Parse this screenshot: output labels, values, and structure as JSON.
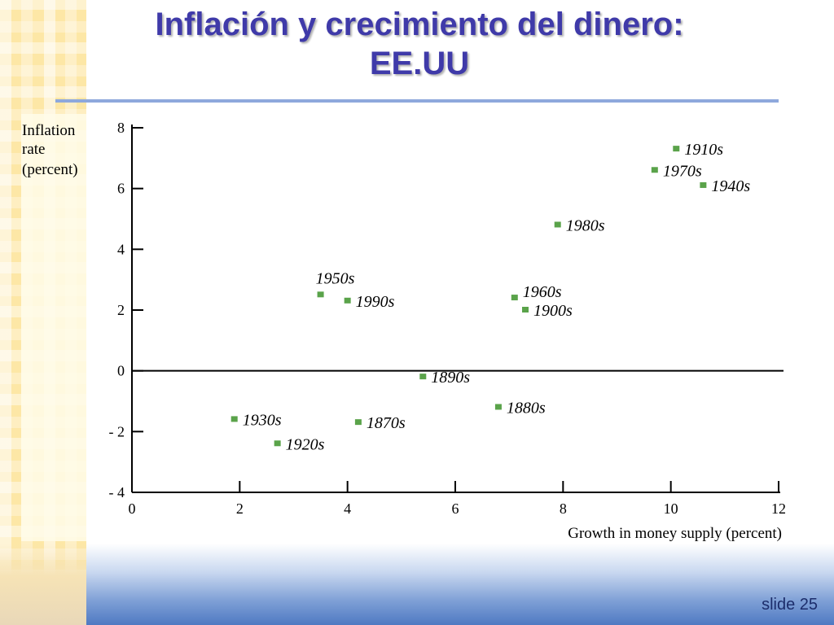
{
  "slide": {
    "title_line1": "Inflación y crecimiento del dinero:",
    "title_line2": "EE.UU",
    "number_label": "slide 25"
  },
  "colors": {
    "title": "#3f3aa9",
    "rule": "#8ea8dc",
    "marker": "#5aa34a",
    "axis": "#000000"
  },
  "chart_data": {
    "type": "scatter",
    "ylabel_lines": [
      "Inflation",
      "rate",
      "(percent)"
    ],
    "xlabel": "Growth in money supply (percent)",
    "xlim": [
      0,
      12
    ],
    "ylim": [
      -4,
      8
    ],
    "xticks": [
      {
        "value": 0,
        "label": "0"
      },
      {
        "value": 2,
        "label": "2"
      },
      {
        "value": 4,
        "label": "4"
      },
      {
        "value": 6,
        "label": "6"
      },
      {
        "value": 8,
        "label": "8"
      },
      {
        "value": 10,
        "label": "10"
      },
      {
        "value": 12,
        "label": "12"
      }
    ],
    "yticks": [
      {
        "value": 8,
        "label": "8"
      },
      {
        "value": 6,
        "label": "6"
      },
      {
        "value": 4,
        "label": "4"
      },
      {
        "value": 2,
        "label": "2"
      },
      {
        "value": 0,
        "label": "0"
      },
      {
        "value": -2,
        "label": "- 2"
      },
      {
        "value": -4,
        "label": "- 4"
      }
    ],
    "points": [
      {
        "label": "1870s",
        "x": 4.2,
        "y": -1.7
      },
      {
        "label": "1880s",
        "x": 6.8,
        "y": -1.2
      },
      {
        "label": "1890s",
        "x": 5.4,
        "y": -0.2
      },
      {
        "label": "1900s",
        "x": 7.3,
        "y": 2.0
      },
      {
        "label": "1910s",
        "x": 10.1,
        "y": 7.3
      },
      {
        "label": "1920s",
        "x": 2.7,
        "y": -2.4
      },
      {
        "label": "1930s",
        "x": 1.9,
        "y": -1.6
      },
      {
        "label": "1940s",
        "x": 10.6,
        "y": 6.1
      },
      {
        "label": "1950s",
        "x": 3.5,
        "y": 2.5
      },
      {
        "label": "1960s",
        "x": 7.1,
        "y": 2.4
      },
      {
        "label": "1970s",
        "x": 9.7,
        "y": 6.6
      },
      {
        "label": "1980s",
        "x": 7.9,
        "y": 4.8
      },
      {
        "label": "1990s",
        "x": 4.0,
        "y": 2.3
      }
    ]
  }
}
